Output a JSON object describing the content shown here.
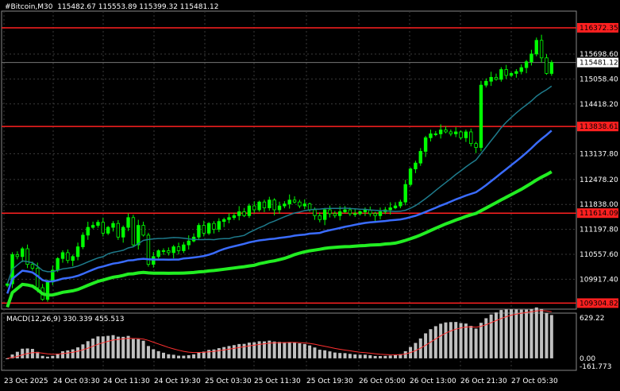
{
  "header": {
    "symbol": "#Bitcoin,M30",
    "ohlc": "115482.67 115553.89 115399.32 115481.12"
  },
  "macd": {
    "label": "MACD(12,26,9) 330.339 455.513",
    "scale_labels": [
      "629.22",
      "0.00",
      "-161.773"
    ]
  },
  "colors": {
    "background": "#000000",
    "grid": "#3a3a3a",
    "candle": "#00ff00",
    "ma_fast": "#1e7b8c",
    "ma_mid": "#3a6cff",
    "ma_slow": "#22ee22",
    "level_line": "#ff2020",
    "macd_hist": "#c0c0c0",
    "macd_signal": "#ff3030"
  },
  "chart_data": {
    "type": "candlestick",
    "price_axis_labels": [
      "116372.35",
      "115698.60",
      "115481.12",
      "115058.40",
      "114418.20",
      "113838.61",
      "113137.80",
      "112478.20",
      "111838.00",
      "111614.09",
      "111197.80",
      "110557.60",
      "109917.40",
      "109304.82"
    ],
    "time_axis_labels": [
      "23 Oct 2025",
      "24 Oct 03:30",
      "24 Oct 11:30",
      "24 Oct 19:30",
      "25 Oct 03:30",
      "25 Oct 11:30",
      "25 Oct 19:30",
      "26 Oct 05:00",
      "26 Oct 13:00",
      "26 Oct 21:30",
      "27 Oct 05:30"
    ],
    "current_price": 115481.12,
    "horizontal_levels": [
      116372.35,
      113838.61,
      111614.09,
      109304.82
    ],
    "ylim": [
      109150,
      116800
    ],
    "macd_ylim": [
      -161.773,
      629.22
    ],
    "closes": [
      109800,
      110550,
      110500,
      110700,
      110300,
      110200,
      109700,
      109400,
      109850,
      110150,
      110450,
      110600,
      110400,
      110500,
      110750,
      111050,
      111250,
      111300,
      111380,
      111100,
      111250,
      111350,
      111000,
      111250,
      111500,
      110800,
      111300,
      111050,
      110300,
      110500,
      110650,
      110650,
      110600,
      110750,
      110650,
      110800,
      110900,
      111000,
      111300,
      111100,
      111350,
      111200,
      111400,
      111450,
      111500,
      111550,
      111650,
      111550,
      111800,
      111700,
      111900,
      111750,
      111950,
      111700,
      111800,
      111850,
      111950,
      111900,
      111800,
      111850,
      111700,
      111550,
      111450,
      111700,
      111600,
      111550,
      111650,
      111700,
      111600,
      111600,
      111650,
      111700,
      111600,
      111550,
      111650,
      111700,
      111750,
      111800,
      111900,
      112350,
      112750,
      112900,
      113200,
      113550,
      113650,
      113650,
      113750,
      113700,
      113650,
      113700,
      113550,
      113700,
      113400,
      113300,
      114900,
      115000,
      115100,
      115050,
      115300,
      115150,
      115200,
      115250,
      115350,
      115500,
      115700,
      116050,
      115600,
      115200,
      115481
    ]
  }
}
